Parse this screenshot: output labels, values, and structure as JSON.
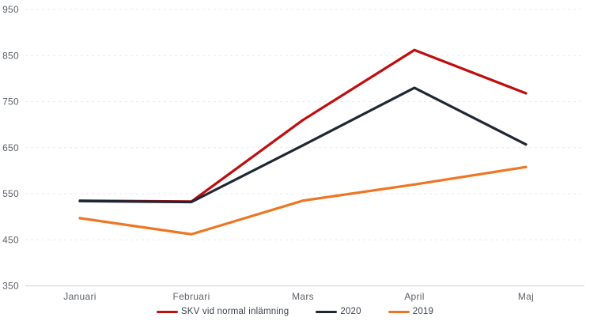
{
  "chart_data": {
    "type": "line",
    "title": "",
    "categories": [
      "Januari",
      "Februari",
      "Mars",
      "April",
      "Maj"
    ],
    "series": [
      {
        "name": "SKV vid normal inlämning",
        "color": "#c00d0e",
        "values": [
          535,
          533,
          710,
          862,
          768
        ]
      },
      {
        "name": "2020",
        "color": "#1f2734",
        "values": [
          534,
          532,
          655,
          780,
          657
        ]
      },
      {
        "name": "2019",
        "color": "#ee7623",
        "values": [
          497,
          462,
          535,
          570,
          608
        ]
      }
    ],
    "ylim": [
      350,
      950
    ],
    "ytick_step": 100,
    "ytick_labels": [
      "350",
      "450",
      "550",
      "650",
      "750",
      "850",
      "950"
    ],
    "grid": "horizontal-dashed",
    "legend_position": "bottom",
    "colors": {
      "background": "#ffffff",
      "grid_line": "#e9eaec",
      "axis_line": "#d7d8da",
      "tick_label": "#5d6269",
      "legend_text": "#3d4450"
    }
  }
}
